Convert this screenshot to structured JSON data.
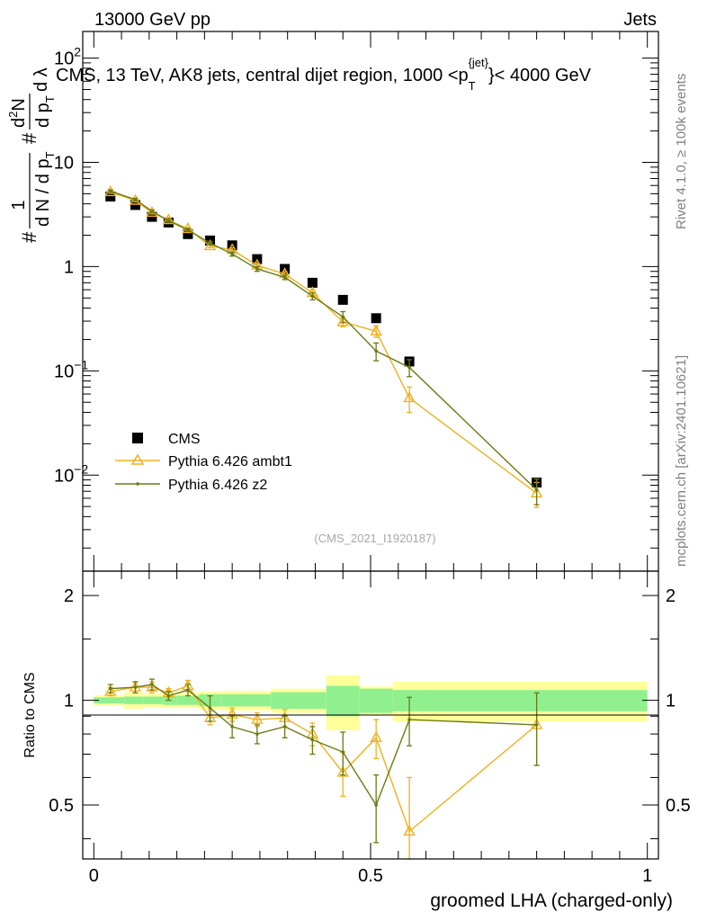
{
  "header": {
    "left": "13000 GeV pp",
    "right": "Jets"
  },
  "title": {
    "main": "CMS, 13 TeV, AK8 jets, central dijet region, 1000 <p",
    "sub": "T",
    "sup": "{jet}",
    "tail": "}< 4000 GeV"
  },
  "side_labels": {
    "rivet": "Rivet 4.1.0, ≥ 100k events",
    "mcplots": "mcplots.cern.ch [arXiv:2401.10621]"
  },
  "watermark": "(CMS_2021_I1920187)",
  "ylabel_main": {
    "hash1": "#",
    "frac_num": "1",
    "frac_den": "d N / d p",
    "frac_den_sub": "T",
    "hash2": "#",
    "d2N_num": "d",
    "d2N_sup": "2",
    "d2N_N": "N",
    "d2N_den": "d p",
    "d2N_den_sub": "T",
    "dlambda": "d λ"
  },
  "ylabel_ratio": "Ratio to CMS",
  "xlabel": "groomed LHA (charged-only)",
  "legend": [
    {
      "label": "CMS",
      "color": "#000000",
      "marker": "square"
    },
    {
      "label": "Pythia 6.426 ambt1",
      "color": "#f0b020",
      "marker": "triangle"
    },
    {
      "label": "Pythia 6.426 z2",
      "color": "#6b7a12",
      "marker": "dot"
    }
  ],
  "main_ticks": {
    "y": [
      {
        "label": "10",
        "sup": "−2",
        "value": 0.01
      },
      {
        "label": "10",
        "sup": "−1",
        "value": 0.1
      },
      {
        "label": "1",
        "sup": "",
        "value": 1
      },
      {
        "label": "10",
        "sup": "",
        "value": 10
      },
      {
        "label": "10",
        "sup": "2",
        "value": 100
      }
    ]
  },
  "ratio_ticks": {
    "y": [
      {
        "label": "0.5",
        "value": 0.5
      },
      {
        "label": "1",
        "value": 1
      },
      {
        "label": "2",
        "value": 2
      }
    ]
  },
  "x_ticks": [
    {
      "label": "0",
      "value": 0
    },
    {
      "label": "0.5",
      "value": 0.5
    },
    {
      "label": "1",
      "value": 1
    }
  ],
  "chart_data": {
    "type": "scatter",
    "xlim": [
      -0.02,
      1.02
    ],
    "main_ylim": [
      0.0012,
      180
    ],
    "ratio_ylim": [
      0.35,
      2.35
    ],
    "bins": [
      0.0,
      0.055,
      0.09,
      0.125,
      0.15,
      0.19,
      0.23,
      0.27,
      0.32,
      0.37,
      0.42,
      0.48,
      0.54,
      0.6,
      1.0
    ],
    "x": [
      0.03,
      0.075,
      0.105,
      0.135,
      0.17,
      0.21,
      0.25,
      0.295,
      0.345,
      0.395,
      0.45,
      0.51,
      0.57,
      0.8
    ],
    "series": [
      {
        "name": "CMS",
        "values": [
          4.7,
          3.9,
          3.0,
          2.65,
          2.05,
          1.78,
          1.6,
          1.18,
          0.95,
          0.7,
          0.48,
          0.32,
          0.123,
          0.0085
        ]
      },
      {
        "name": "Pythia 6.426 ambt1",
        "values": [
          5.2,
          4.3,
          3.3,
          2.8,
          2.3,
          1.58,
          1.45,
          1.03,
          0.85,
          0.56,
          0.295,
          0.24,
          0.055,
          0.0067
        ],
        "errors": [
          0.15,
          0.12,
          0.1,
          0.08,
          0.07,
          0.06,
          0.06,
          0.05,
          0.04,
          0.04,
          0.03,
          0.03,
          0.015,
          0.0018
        ]
      },
      {
        "name": "Pythia 6.426 z2",
        "values": [
          5.3,
          4.4,
          3.4,
          2.75,
          2.25,
          1.68,
          1.32,
          0.95,
          0.79,
          0.52,
          0.33,
          0.155,
          0.108,
          0.0072
        ],
        "errors": [
          0.15,
          0.12,
          0.1,
          0.08,
          0.07,
          0.06,
          0.06,
          0.05,
          0.04,
          0.04,
          0.04,
          0.03,
          0.02,
          0.002
        ]
      }
    ],
    "ratio_series": [
      {
        "name": "Pythia 6.426 ambt1",
        "values": [
          1.06,
          1.09,
          1.09,
          1.05,
          1.1,
          0.89,
          0.91,
          0.88,
          0.89,
          0.8,
          0.62,
          0.78,
          0.42,
          0.85
        ],
        "errors": [
          0.03,
          0.04,
          0.04,
          0.03,
          0.04,
          0.04,
          0.04,
          0.04,
          0.05,
          0.06,
          0.09,
          0.1,
          0.18,
          0.2
        ]
      },
      {
        "name": "Pythia 6.426 z2",
        "values": [
          1.08,
          1.09,
          1.11,
          1.03,
          1.07,
          0.95,
          0.84,
          0.8,
          0.84,
          0.77,
          0.71,
          0.5,
          0.88,
          0.85
        ],
        "errors": [
          0.03,
          0.04,
          0.04,
          0.03,
          0.04,
          0.08,
          0.06,
          0.05,
          0.06,
          0.07,
          0.1,
          0.11,
          0.14,
          0.2
        ]
      }
    ],
    "uncertainty_bands": {
      "stat_green": [
        0.02,
        0.025,
        0.025,
        0.03,
        0.03,
        0.04,
        0.04,
        0.04,
        0.055,
        0.055,
        0.1,
        0.08,
        0.07,
        0.07
      ],
      "total_yellow": [
        0.035,
        0.055,
        0.045,
        0.05,
        0.05,
        0.06,
        0.065,
        0.065,
        0.08,
        0.08,
        0.18,
        0.095,
        0.13,
        0.13
      ]
    },
    "colors": {
      "data": "#000000",
      "ambt1": "#f0b020",
      "z2": "#6b7a12",
      "band_green": "#90f090",
      "band_yellow": "#ffff9a"
    }
  }
}
